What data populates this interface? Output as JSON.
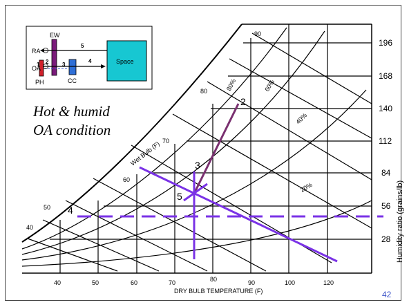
{
  "chart": {
    "title_lines": [
      "Hot & humid",
      "OA condition"
    ],
    "x_axis_label": "DRY BULB TEMPERATURE (F)",
    "x_ticks": [
      "40",
      "50",
      "60",
      "70",
      "80",
      "90",
      "100",
      "120"
    ],
    "y_axis_label": "Humidity ratio (grains/lb)",
    "y_ticks": [
      "196",
      "168",
      "140",
      "112",
      "84",
      "56",
      "28"
    ],
    "wet_bulb_label": "Wet Bulb (F)",
    "wet_bulb_ticks": [
      "40",
      "50",
      "60",
      "70",
      "80",
      "90"
    ],
    "rh_labels": [
      "80%",
      "60%",
      "40%",
      "20%"
    ],
    "state_points": [
      "2",
      "3",
      "5",
      "4"
    ]
  },
  "schematic": {
    "ew": "EW",
    "ra": "RA",
    "oa": "OA",
    "ph": "PH",
    "cc": "CC",
    "space": "Space",
    "nums": [
      "1",
      "2",
      "3",
      "4",
      "5"
    ]
  },
  "page_number": "42",
  "colors": {
    "process": "#7a3070",
    "mixing": "#7a32e6",
    "space": "#17c7d2",
    "ew": "#7a1a7a",
    "ph": "#d0202a",
    "cc": "#2f6fd6"
  }
}
